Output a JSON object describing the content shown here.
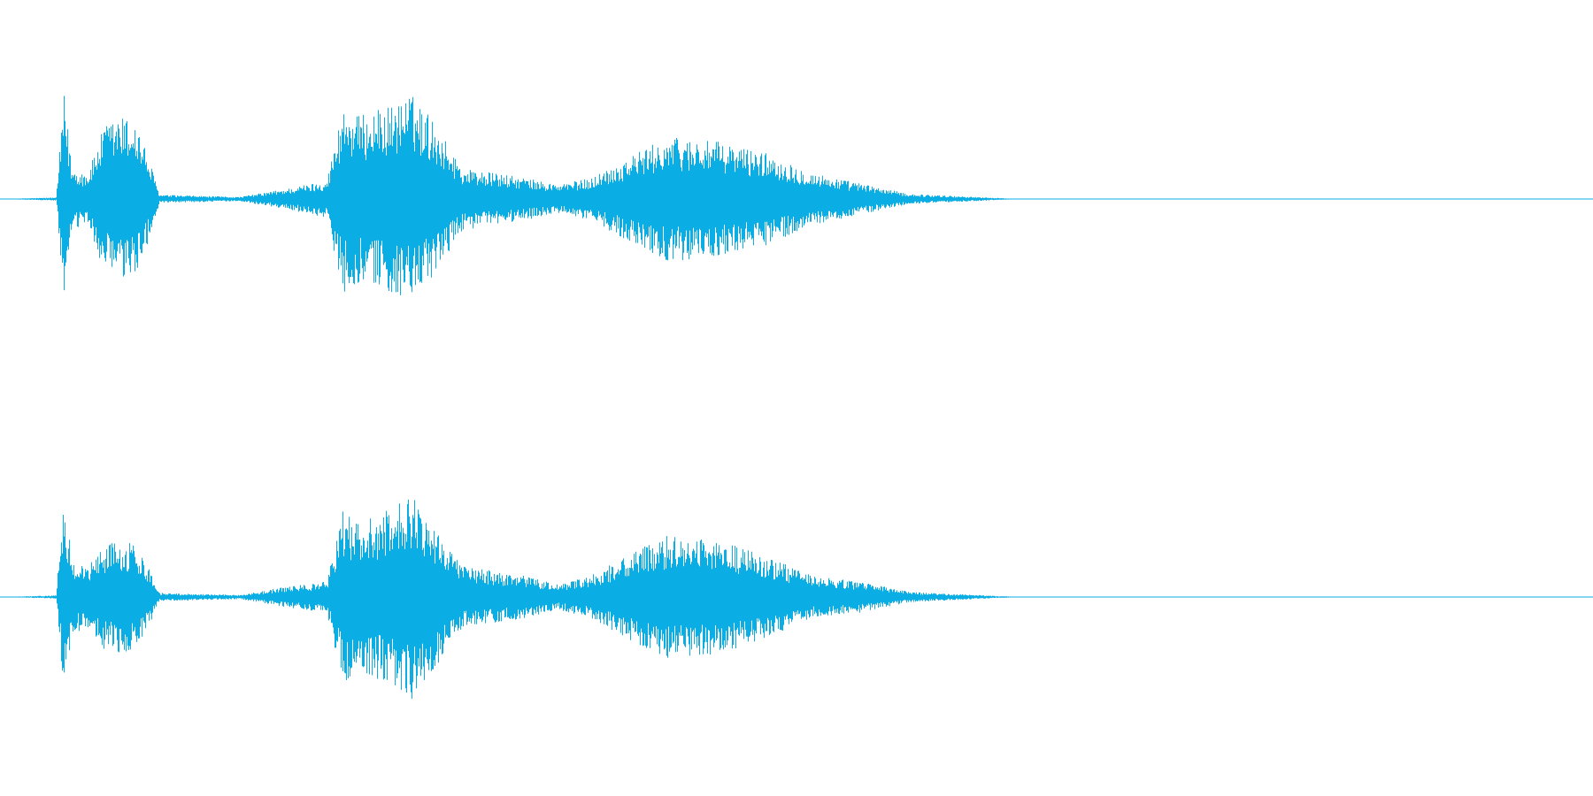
{
  "waveform": {
    "color": "#0aaee4",
    "background": "#ffffff",
    "channels": [
      {
        "name": "",
        "envelope": [
          [
            0.0,
            0.0
          ],
          [
            0.035,
            0.015
          ],
          [
            0.04,
            1.0
          ],
          [
            0.045,
            0.3
          ],
          [
            0.055,
            0.25
          ],
          [
            0.065,
            0.7
          ],
          [
            0.075,
            0.8
          ],
          [
            0.085,
            0.75
          ],
          [
            0.093,
            0.4
          ],
          [
            0.1,
            0.04
          ],
          [
            0.15,
            0.02
          ],
          [
            0.18,
            0.1
          ],
          [
            0.205,
            0.18
          ],
          [
            0.215,
            0.9
          ],
          [
            0.225,
            0.8
          ],
          [
            0.245,
            0.9
          ],
          [
            0.258,
            1.0
          ],
          [
            0.27,
            0.8
          ],
          [
            0.29,
            0.3
          ],
          [
            0.33,
            0.2
          ],
          [
            0.35,
            0.14
          ],
          [
            0.37,
            0.2
          ],
          [
            0.4,
            0.45
          ],
          [
            0.42,
            0.6
          ],
          [
            0.45,
            0.55
          ],
          [
            0.48,
            0.45
          ],
          [
            0.51,
            0.25
          ],
          [
            0.54,
            0.15
          ],
          [
            0.57,
            0.05
          ],
          [
            0.64,
            0.0
          ],
          [
            1.0,
            0.0
          ]
        ]
      },
      {
        "name": "",
        "envelope": [
          [
            0.0,
            0.0
          ],
          [
            0.035,
            0.015
          ],
          [
            0.04,
            1.0
          ],
          [
            0.045,
            0.35
          ],
          [
            0.055,
            0.3
          ],
          [
            0.065,
            0.5
          ],
          [
            0.075,
            0.55
          ],
          [
            0.085,
            0.5
          ],
          [
            0.093,
            0.3
          ],
          [
            0.1,
            0.04
          ],
          [
            0.15,
            0.02
          ],
          [
            0.18,
            0.1
          ],
          [
            0.205,
            0.15
          ],
          [
            0.215,
            0.85
          ],
          [
            0.225,
            0.7
          ],
          [
            0.245,
            0.85
          ],
          [
            0.258,
            1.0
          ],
          [
            0.27,
            0.75
          ],
          [
            0.29,
            0.3
          ],
          [
            0.33,
            0.2
          ],
          [
            0.35,
            0.12
          ],
          [
            0.37,
            0.2
          ],
          [
            0.4,
            0.45
          ],
          [
            0.42,
            0.6
          ],
          [
            0.45,
            0.55
          ],
          [
            0.48,
            0.4
          ],
          [
            0.51,
            0.2
          ],
          [
            0.54,
            0.15
          ],
          [
            0.57,
            0.05
          ],
          [
            0.64,
            0.0
          ],
          [
            1.0,
            0.0
          ]
        ]
      }
    ]
  }
}
